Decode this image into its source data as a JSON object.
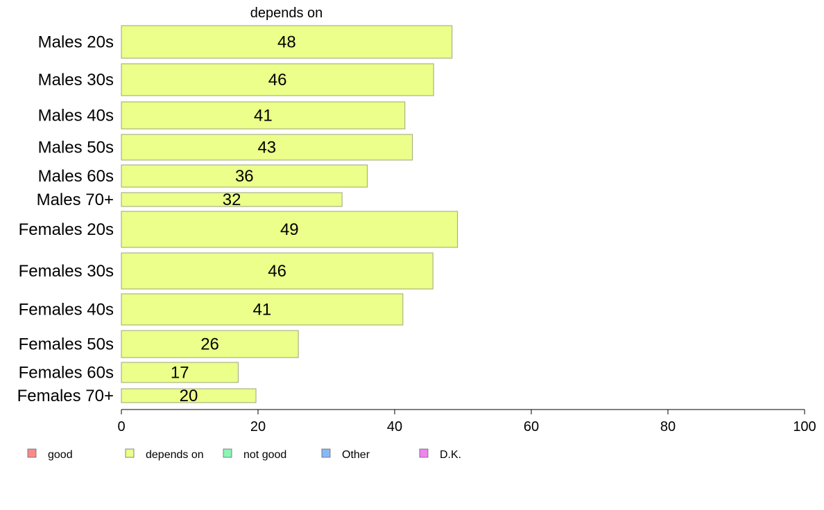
{
  "chart_data": {
    "type": "bar",
    "orientation": "horizontal",
    "title": "depends on",
    "categories": [
      "Males 20s",
      "Males 30s",
      "Males 40s",
      "Males 50s",
      "Males 60s",
      "Males 70+",
      "Females 20s",
      "Females 30s",
      "Females 40s",
      "Females 50s",
      "Females 60s",
      "Females 70+"
    ],
    "values": [
      48,
      46,
      41,
      43,
      36,
      32,
      49,
      46,
      41,
      26,
      17,
      20
    ],
    "plotted_values": [
      48.4,
      45.7,
      41.5,
      42.6,
      36.0,
      32.3,
      49.2,
      45.6,
      41.2,
      25.9,
      17.1,
      19.7
    ],
    "xlim": [
      0,
      100
    ],
    "xticks": [
      0,
      20,
      40,
      60,
      80,
      100
    ],
    "xlabel": "",
    "ylabel": "",
    "bar_color": "#ebff8a",
    "legend_position": "bottom",
    "legend": [
      {
        "label": "good",
        "color": "#f78b8b"
      },
      {
        "label": "depends on",
        "color": "#ebff8a"
      },
      {
        "label": "not good",
        "color": "#8bf5b6"
      },
      {
        "label": "Other",
        "color": "#89b8f7"
      },
      {
        "label": "D.K.",
        "color": "#f082f2"
      }
    ]
  }
}
